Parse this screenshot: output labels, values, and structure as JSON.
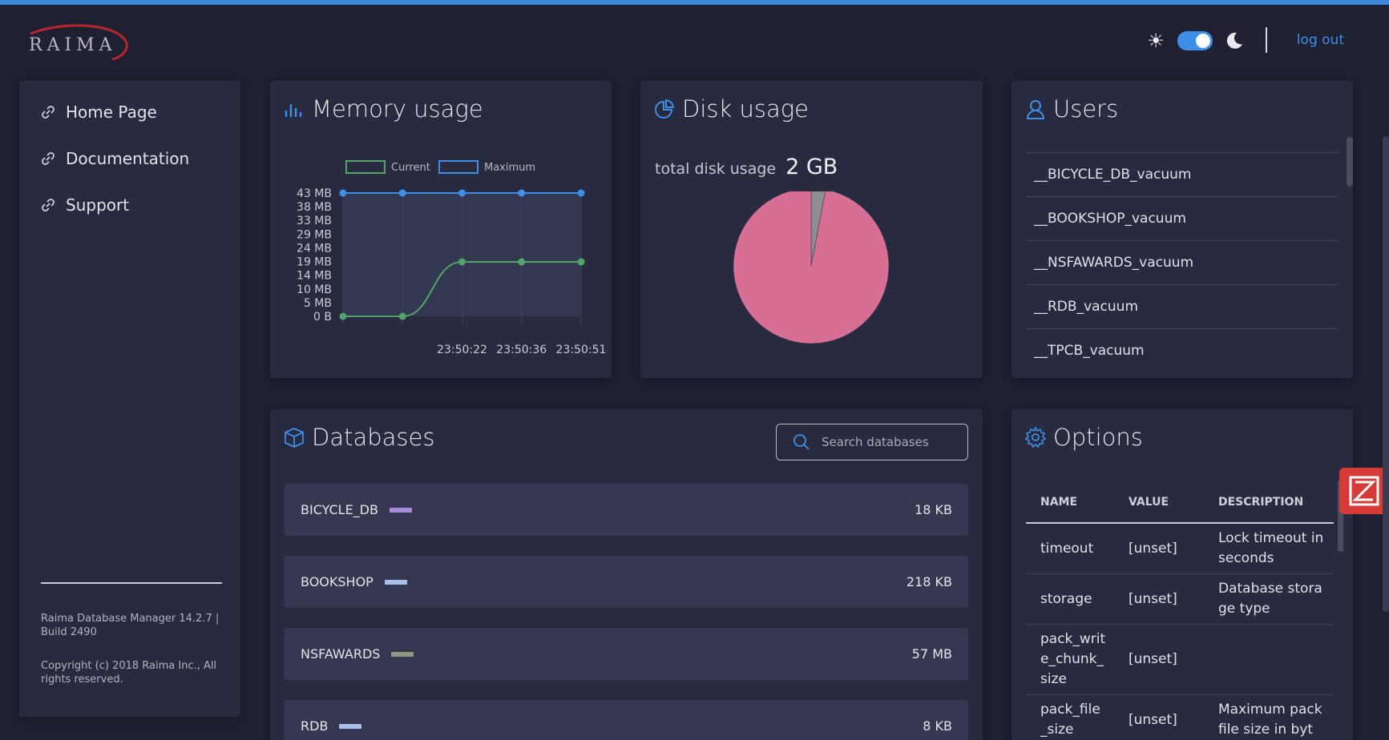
{
  "header": {
    "logo_text": "RAIMA",
    "logout_label": "log out",
    "theme_toggle_on": true
  },
  "sidebar": {
    "items": [
      {
        "label": "Home Page",
        "icon": "link-icon"
      },
      {
        "label": "Documentation",
        "icon": "link-icon"
      },
      {
        "label": "Support",
        "icon": "link-icon"
      }
    ],
    "version": "Raima Database Manager 14.2.7 | Build 2490",
    "copyright": "Copyright (c) 2018 Raima Inc., All rights reserved."
  },
  "memory": {
    "title": "Memory usage",
    "legend": [
      "Current",
      "Maximum"
    ],
    "y_ticks": [
      "43 MB",
      "38 MB",
      "33 MB",
      "29 MB",
      "24 MB",
      "19 MB",
      "14 MB",
      "10 MB",
      "5 MB",
      "0 B"
    ],
    "x_ticks": [
      "23:50:22",
      "23:50:36",
      "23:50:51"
    ]
  },
  "disk": {
    "title": "Disk usage",
    "total_label": "total disk usage",
    "total_value": "2 GB"
  },
  "users": {
    "title": "Users",
    "items": [
      "__BICYCLE_DB_vacuum",
      "__BOOKSHOP_vacuum",
      "__NSFAWARDS_vacuum",
      "__RDB_vacuum",
      "__TPCB_vacuum"
    ]
  },
  "databases": {
    "title": "Databases",
    "search_placeholder": "Search databases",
    "rows": [
      {
        "name": "BICYCLE_DB",
        "size": "18 KB",
        "color": "#a98ad8"
      },
      {
        "name": "BOOKSHOP",
        "size": "218 KB",
        "color": "#a9c0ea"
      },
      {
        "name": "NSFAWARDS",
        "size": "57 MB",
        "color": "#8a9a85"
      },
      {
        "name": "RDB",
        "size": "8 KB",
        "color": "#a9c0ea"
      }
    ]
  },
  "options": {
    "title": "Options",
    "columns": [
      "NAME",
      "VALUE",
      "DESCRIPTION"
    ],
    "rows": [
      {
        "name": "timeout",
        "value": "[unset]",
        "description": "Lock timeout in seconds"
      },
      {
        "name": "storage",
        "value": "[unset]",
        "description": "Database storage type"
      },
      {
        "name": "pack_write_chunk_size",
        "value": "[unset]",
        "description": ""
      },
      {
        "name": "pack_file_size",
        "value": "[unset]",
        "description": "Maximum pack file size in byt"
      }
    ]
  },
  "colors": {
    "accent": "#3f8fe8",
    "current_line": "#52a46a",
    "maximum_line": "#3f8fe8",
    "pie_main": "#d76f95",
    "pie_minor": "#8d8d92"
  },
  "chart_data": [
    {
      "type": "line",
      "title": "Memory usage",
      "x": [
        "",
        "",
        "23:50:22",
        "23:50:36",
        "23:50:51"
      ],
      "series": [
        {
          "name": "Current",
          "values": [
            0,
            0,
            19,
            19,
            19
          ]
        },
        {
          "name": "Maximum",
          "values": [
            43,
            43,
            43,
            43,
            43
          ]
        }
      ],
      "ylabel": "",
      "ylim": [
        0,
        43
      ],
      "yunit": "MB",
      "legend": "top"
    },
    {
      "type": "pie",
      "title": "Disk usage",
      "slices": [
        {
          "label": "",
          "value": 97,
          "color": "#d76f95"
        },
        {
          "label": "",
          "value": 3,
          "color": "#8d8d92"
        }
      ]
    }
  ]
}
